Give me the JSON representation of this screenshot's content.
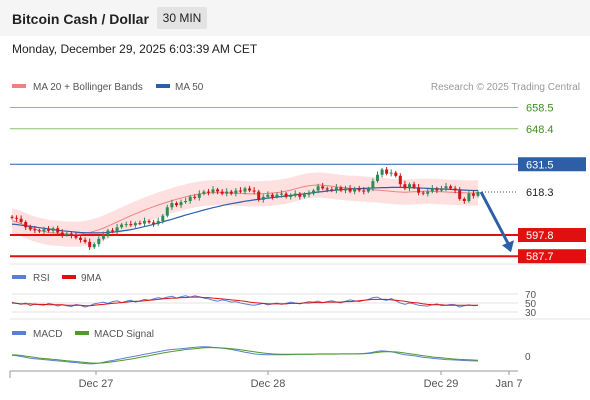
{
  "header": {
    "title": "Bitcoin Cash / Dollar",
    "interval": "30 MIN",
    "timestamp": "Monday, December 29, 2025 6:03:39 AM CET"
  },
  "legend": {
    "ma20_bb": "MA 20 + Bollinger Bands",
    "ma50": "MA 50",
    "credit": "Research © 2025 Trading Central",
    "rsi": "RSI",
    "rsi_ma": "9MA",
    "macd": "MACD",
    "macd_signal": "MACD Signal"
  },
  "colors": {
    "candle_up": "#2e8b57",
    "candle_down": "#d11515",
    "ma20": "#f08080",
    "bollinger_fill": "#fdd5d5",
    "ma50": "#2d5fa8",
    "resistance_green": "#8cc06a",
    "resistance_blue": "#2d5fa8",
    "support_red": "#e01010",
    "arrow": "#2d5fa8",
    "macd": "#5b7fd6",
    "macd_signal": "#4f9a2a"
  },
  "chart_data": [
    {
      "type": "candlestick",
      "ylim": [
        584,
        664
      ],
      "x_ticks": [
        "Dec 27",
        "Dec 28",
        "Dec 29",
        "Jan 7"
      ],
      "levels": [
        {
          "value": 658.5,
          "label": "658.5",
          "kind": "resistance"
        },
        {
          "value": 648.4,
          "label": "648.4",
          "kind": "resistance"
        },
        {
          "value": 631.5,
          "label": "631.5",
          "kind": "resistance-strong"
        },
        {
          "value": 618.3,
          "label": "618.3",
          "kind": "last-price"
        },
        {
          "value": 597.8,
          "label": "597.8",
          "kind": "support"
        },
        {
          "value": 587.7,
          "label": "587.7",
          "kind": "support"
        }
      ],
      "close": [
        606.0,
        605.5,
        604.0,
        601.5,
        600.5,
        600.0,
        599.5,
        600.5,
        599.8,
        601.0,
        599.0,
        597.8,
        598.5,
        597.5,
        596.5,
        595.5,
        594.5,
        592.0,
        593.5,
        596.0,
        597.8,
        600.0,
        599.5,
        601.5,
        602.8,
        603.0,
        602.5,
        603.5,
        603.2,
        604.5,
        603.8,
        603.0,
        604.5,
        607.0,
        611.0,
        613.0,
        612.0,
        613.5,
        614.0,
        616.0,
        615.5,
        617.5,
        618.5,
        618.0,
        619.5,
        618.5,
        617.5,
        618.5,
        617.5,
        619.0,
        618.5,
        620.0,
        619.0,
        618.5,
        614.5,
        616.0,
        617.0,
        616.0,
        617.0,
        617.5,
        616.0,
        616.5,
        617.5,
        616.0,
        617.0,
        617.5,
        619.0,
        621.0,
        620.0,
        619.5,
        619.0,
        620.5,
        619.0,
        620.0,
        618.5,
        620.0,
        619.0,
        618.5,
        620.0,
        623.5,
        626.5,
        629.0,
        627.0,
        627.5,
        626.0,
        622.0,
        620.0,
        622.0,
        620.5,
        618.0,
        617.5,
        618.5,
        620.0,
        619.0,
        620.0,
        621.0,
        620.0,
        619.0,
        615.0,
        614.0,
        617.5,
        616.5,
        618.3
      ],
      "ma20": [
        604.5,
        604.0,
        603.2,
        602.3,
        601.4,
        600.6,
        600.0,
        599.5,
        599.0,
        598.8,
        598.6,
        598.4,
        598.3,
        598.2,
        598.2,
        598.3,
        598.6,
        599.0,
        599.6,
        600.3,
        601.1,
        602.0,
        603.0,
        604.0,
        605.0,
        606.0,
        607.0,
        607.9,
        608.8,
        609.7,
        610.5,
        611.3,
        612.1,
        612.8,
        613.5,
        614.2,
        614.8,
        615.4,
        616.0,
        616.5,
        616.9,
        617.3,
        617.6,
        617.8,
        617.9,
        618.0,
        618.0,
        617.9,
        617.8,
        617.7,
        617.6,
        617.5,
        617.4,
        617.4,
        617.4,
        617.5,
        617.6,
        617.8,
        618.0,
        618.3,
        618.7,
        619.2,
        619.8,
        620.4,
        620.9,
        621.3,
        621.5,
        621.6,
        621.5,
        621.3,
        621.0,
        620.7,
        620.5,
        620.3,
        620.1,
        620.0,
        619.9,
        619.7,
        619.5,
        619.4,
        619.2,
        619.0,
        618.8,
        618.6,
        618.4,
        618.3,
        618.2,
        618.3,
        618.4,
        618.5,
        618.6,
        618.7,
        618.6,
        618.5,
        618.4,
        618.3,
        618.2,
        618.1,
        618.0,
        617.9,
        617.8,
        617.8,
        617.8
      ],
      "bb_width": [
        6,
        6,
        6,
        6,
        6,
        6,
        6,
        6,
        6,
        6,
        6,
        6,
        6,
        6,
        6,
        6,
        6,
        6,
        6,
        6,
        6,
        6,
        6,
        6,
        6,
        6,
        6,
        6,
        6,
        6,
        6,
        6,
        6,
        6,
        6,
        6,
        6,
        6,
        6,
        6,
        6,
        6,
        6,
        6,
        6,
        6,
        6,
        6,
        6,
        6,
        6,
        6,
        6,
        6,
        6,
        6,
        6,
        6,
        6,
        6,
        6,
        6,
        6,
        6,
        6,
        6,
        6,
        6,
        6,
        6,
        6,
        6,
        6,
        6,
        6,
        6,
        6,
        6,
        6,
        6,
        6,
        6,
        6,
        6,
        6,
        6,
        6,
        6,
        6,
        6,
        6,
        6,
        6,
        6,
        6,
        6,
        6,
        6,
        6,
        6,
        6,
        6,
        6
      ],
      "ma50": [
        603.0,
        602.8,
        602.5,
        602.2,
        601.9,
        601.6,
        601.3,
        601.0,
        600.7,
        600.4,
        600.1,
        599.8,
        599.6,
        599.4,
        599.2,
        599.0,
        598.9,
        598.8,
        598.8,
        598.8,
        598.9,
        599.0,
        599.2,
        599.4,
        599.7,
        600.0,
        600.4,
        600.8,
        601.3,
        601.8,
        602.3,
        602.9,
        603.5,
        604.1,
        604.7,
        605.3,
        606.0,
        606.6,
        607.3,
        607.9,
        608.5,
        609.1,
        609.7,
        610.3,
        610.8,
        611.3,
        611.8,
        612.3,
        612.7,
        613.1,
        613.5,
        613.9,
        614.2,
        614.5,
        614.8,
        615.1,
        615.4,
        615.6,
        615.9,
        616.1,
        616.4,
        616.6,
        616.9,
        617.2,
        617.4,
        617.7,
        618.0,
        618.3,
        618.5,
        618.8,
        619.0,
        619.2,
        619.4,
        619.6,
        619.7,
        619.8,
        619.9,
        620.0,
        620.1,
        620.2,
        620.3,
        620.4,
        620.4,
        620.5,
        620.5,
        620.5,
        620.5,
        620.4,
        620.3,
        620.2,
        620.1,
        620.0,
        619.9,
        619.8,
        619.7,
        619.6,
        619.5,
        619.4,
        619.3,
        619.2,
        619.1,
        619.0,
        619.0
      ],
      "projection": {
        "from": 618.3,
        "to": 587.7
      }
    },
    {
      "type": "line",
      "name": "RSI",
      "ticks": [
        70,
        50,
        30
      ],
      "ylim": [
        30,
        70
      ],
      "series": [
        {
          "name": "RSI",
          "values": [
            52,
            49,
            47,
            50,
            44,
            48,
            46,
            45,
            49,
            47,
            43,
            46,
            44,
            42,
            47,
            45,
            41,
            44,
            48,
            50,
            52,
            49,
            53,
            55,
            51,
            54,
            56,
            52,
            55,
            58,
            56,
            59,
            62,
            60,
            63,
            65,
            61,
            64,
            66,
            63,
            66,
            64,
            61,
            59,
            56,
            54,
            57,
            55,
            52,
            53,
            50,
            48,
            46,
            45,
            47,
            49,
            46,
            48,
            50,
            47,
            49,
            52,
            50,
            48,
            51,
            53,
            52,
            54,
            51,
            53,
            55,
            52,
            50,
            54,
            57,
            55,
            53,
            56,
            58,
            62,
            63,
            58,
            56,
            60,
            55,
            50,
            47,
            50,
            48,
            45,
            44,
            43,
            46,
            48,
            44,
            45,
            47,
            46,
            41,
            44,
            46,
            44,
            45
          ]
        },
        {
          "name": "9MA",
          "values": [
            50,
            49,
            48,
            48,
            48,
            47,
            47,
            47,
            46,
            46,
            46,
            46,
            45,
            45,
            45,
            45,
            44,
            44,
            45,
            46,
            47,
            48,
            49,
            50,
            51,
            52,
            53,
            54,
            54,
            55,
            56,
            57,
            58,
            59,
            60,
            61,
            61,
            62,
            62,
            63,
            63,
            63,
            62,
            62,
            61,
            60,
            59,
            58,
            57,
            56,
            55,
            54,
            52,
            51,
            50,
            49,
            48,
            48,
            48,
            48,
            48,
            49,
            49,
            49,
            50,
            50,
            51,
            51,
            51,
            52,
            52,
            52,
            52,
            53,
            53,
            54,
            55,
            56,
            57,
            58,
            58,
            58,
            58,
            57,
            56,
            55,
            54,
            52,
            51,
            50,
            48,
            47,
            46,
            46,
            46,
            45,
            45,
            45,
            45,
            45,
            45,
            45,
            45
          ]
        }
      ]
    },
    {
      "type": "line",
      "name": "MACD",
      "ticks": [
        0
      ],
      "ylim": [
        -2.5,
        3
      ],
      "series": [
        {
          "name": "MACD",
          "values": [
            0.2,
            0.1,
            -0.1,
            -0.3,
            -0.5,
            -0.6,
            -0.7,
            -0.8,
            -0.9,
            -1.0,
            -1.1,
            -1.2,
            -1.3,
            -1.4,
            -1.5,
            -1.6,
            -1.7,
            -1.8,
            -1.75,
            -1.6,
            -1.4,
            -1.2,
            -1.0,
            -0.8,
            -0.6,
            -0.4,
            -0.2,
            0.0,
            0.2,
            0.4,
            0.6,
            0.8,
            1.0,
            1.2,
            1.4,
            1.5,
            1.6,
            1.7,
            1.8,
            1.9,
            2.0,
            2.1,
            2.15,
            2.1,
            2.0,
            1.9,
            1.8,
            1.7,
            1.5,
            1.3,
            1.1,
            0.9,
            0.7,
            0.5,
            0.4,
            0.35,
            0.3,
            0.3,
            0.3,
            0.3,
            0.3,
            0.35,
            0.4,
            0.4,
            0.4,
            0.4,
            0.45,
            0.5,
            0.5,
            0.5,
            0.5,
            0.5,
            0.5,
            0.5,
            0.5,
            0.5,
            0.55,
            0.6,
            0.7,
            0.9,
            1.1,
            1.2,
            1.1,
            1.0,
            0.8,
            0.5,
            0.3,
            0.2,
            0.1,
            -0.1,
            -0.3,
            -0.4,
            -0.5,
            -0.6,
            -0.7,
            -0.8,
            -0.85,
            -0.9,
            -0.95,
            -1.0,
            -1.05,
            -1.1,
            -1.1
          ]
        },
        {
          "name": "MACD Signal",
          "values": [
            0.3,
            0.25,
            0.15,
            0.0,
            -0.15,
            -0.3,
            -0.45,
            -0.55,
            -0.65,
            -0.75,
            -0.85,
            -0.95,
            -1.05,
            -1.15,
            -1.25,
            -1.35,
            -1.45,
            -1.55,
            -1.6,
            -1.6,
            -1.55,
            -1.45,
            -1.3,
            -1.15,
            -1.0,
            -0.85,
            -0.7,
            -0.5,
            -0.3,
            -0.1,
            0.1,
            0.3,
            0.5,
            0.7,
            0.9,
            1.05,
            1.2,
            1.35,
            1.5,
            1.6,
            1.7,
            1.8,
            1.9,
            1.95,
            1.95,
            1.9,
            1.85,
            1.8,
            1.7,
            1.6,
            1.45,
            1.3,
            1.15,
            1.0,
            0.85,
            0.7,
            0.6,
            0.5,
            0.45,
            0.4,
            0.4,
            0.4,
            0.4,
            0.4,
            0.4,
            0.4,
            0.4,
            0.45,
            0.45,
            0.45,
            0.45,
            0.45,
            0.5,
            0.5,
            0.5,
            0.5,
            0.5,
            0.55,
            0.6,
            0.7,
            0.85,
            0.95,
            1.0,
            1.0,
            0.95,
            0.85,
            0.7,
            0.55,
            0.4,
            0.25,
            0.1,
            -0.05,
            -0.2,
            -0.3,
            -0.4,
            -0.5,
            -0.6,
            -0.7,
            -0.75,
            -0.8,
            -0.85,
            -0.9,
            -0.95
          ]
        }
      ]
    }
  ]
}
